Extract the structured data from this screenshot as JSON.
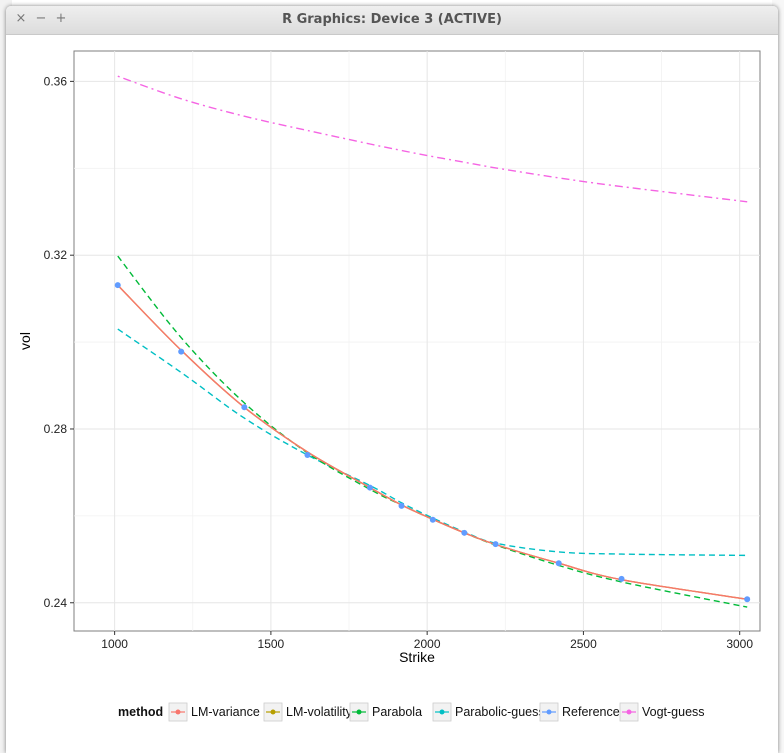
{
  "window": {
    "title": "R Graphics: Device 3 (ACTIVE)",
    "close_symbol": "×",
    "minimize_symbol": "−",
    "maximize_symbol": "+"
  },
  "chart_data": {
    "type": "line",
    "xlabel": "Strike",
    "ylabel": "vol",
    "xlim": [
      870,
      3065
    ],
    "ylim": [
      0.2335,
      0.367
    ],
    "x_ticks": [
      1000,
      1500,
      2000,
      2500,
      3000
    ],
    "y_ticks": [
      0.24,
      0.28,
      0.32,
      0.36
    ],
    "x_tick_labels": [
      "1000",
      "1500",
      "2000",
      "2500",
      "3000"
    ],
    "y_tick_labels": [
      "0.24",
      "0.28",
      "0.32",
      "0.36"
    ],
    "grid": true,
    "legend": {
      "title": "method",
      "position": "bottom",
      "items": [
        "LM-variance",
        "LM-volatility",
        "Parabola",
        "Parabolic-guess",
        "Reference",
        "Vogt-guess"
      ]
    },
    "series": [
      {
        "name": "LM-variance",
        "color": "#F8766D",
        "style": "solid",
        "x": [
          1010,
          1213,
          1415,
          1617,
          1817,
          1918,
          2018,
          2119,
          2219,
          2421,
          2622,
          3024
        ],
        "values": [
          0.3131,
          0.2981,
          0.285,
          0.2747,
          0.2665,
          0.2625,
          0.2592,
          0.2561,
          0.2534,
          0.2491,
          0.2453,
          0.2408
        ]
      },
      {
        "name": "LM-volatility",
        "color": "#B79F00",
        "style": "solid",
        "x": [
          1010,
          1213,
          1415,
          1617,
          1817,
          1918,
          2018,
          2119,
          2219,
          2421,
          2622,
          3024
        ],
        "values": [
          0.3131,
          0.2981,
          0.285,
          0.2747,
          0.2665,
          0.2625,
          0.2592,
          0.2561,
          0.2534,
          0.2491,
          0.2453,
          0.2408
        ]
      },
      {
        "name": "Parabola",
        "color": "#00BA38",
        "style": "dashed",
        "x": [
          1010,
          1213,
          1415,
          1617,
          1817,
          1918,
          2018,
          2119,
          2219,
          2421,
          2622,
          3024
        ],
        "values": [
          0.3198,
          0.301,
          0.286,
          0.2745,
          0.2661,
          0.2625,
          0.2592,
          0.2561,
          0.2533,
          0.2486,
          0.2448,
          0.239
        ]
      },
      {
        "name": "Parabolic-guess",
        "color": "#00BFC4",
        "style": "dashed",
        "x": [
          1010,
          1213,
          1415,
          1617,
          1817,
          1918,
          2018,
          2119,
          2219,
          2421,
          2622,
          3024
        ],
        "values": [
          0.303,
          0.293,
          0.2825,
          0.274,
          0.267,
          0.263,
          0.2595,
          0.2563,
          0.2537,
          0.2517,
          0.2512,
          0.2509
        ]
      },
      {
        "name": "Reference",
        "color": "#619CFF",
        "style": "points",
        "x": [
          1010,
          1213,
          1415,
          1617,
          1817,
          1918,
          2018,
          2119,
          2219,
          2421,
          2622,
          3024
        ],
        "values": [
          0.3131,
          0.2978,
          0.285,
          0.274,
          0.2665,
          0.2623,
          0.2591,
          0.2561,
          0.2535,
          0.2491,
          0.2455,
          0.2408
        ]
      },
      {
        "name": "Vogt-guess",
        "color": "#F564E3",
        "style": "dotdash",
        "x": [
          1010,
          1213,
          1415,
          1617,
          1817,
          1918,
          2018,
          2119,
          2219,
          2421,
          2622,
          3024
        ],
        "values": [
          0.3612,
          0.356,
          0.352,
          0.3487,
          0.3456,
          0.3441,
          0.3427,
          0.3414,
          0.3401,
          0.3378,
          0.3358,
          0.3323
        ]
      }
    ]
  }
}
